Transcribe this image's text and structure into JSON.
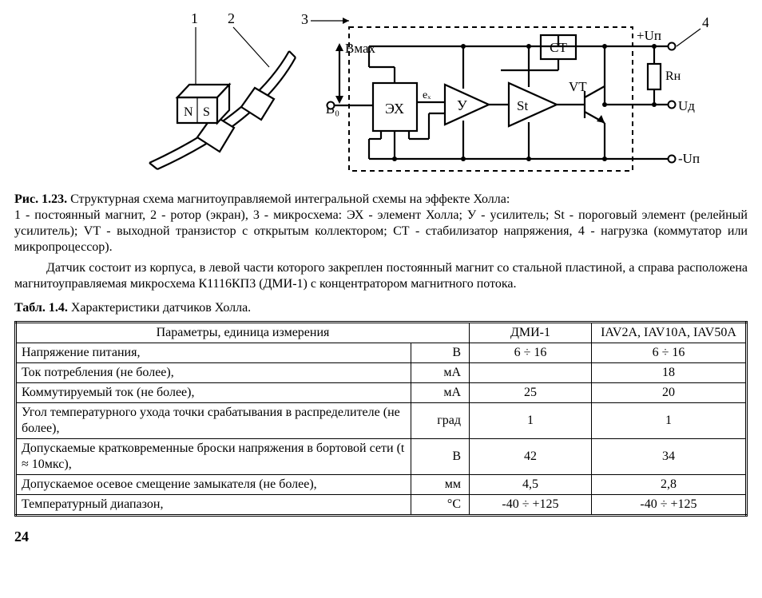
{
  "figure": {
    "labels": {
      "l1": "1",
      "l2": "2",
      "l3": "3",
      "l4": "4",
      "N": "N",
      "S": "S",
      "Bmax": "Bмах",
      "B0": "B₀",
      "EX": "ЭХ",
      "U": "У",
      "St": "St",
      "CT": "СТ",
      "ex": "eₓ",
      "VT": "VT",
      "Rn": "Rн",
      "plusU": "+Uп",
      "Ud": "Uд",
      "minusU": "-Uп"
    },
    "colors": {
      "stroke": "#000000",
      "fill_none": "none",
      "bg": "#ffffff"
    },
    "line_widths": {
      "thin": 1.2,
      "thick": 2.2
    },
    "dash": "6,5"
  },
  "caption": {
    "lead": "Рис. 1.23.",
    "title": " Структурная схема магнитоуправляемой интегральной схемы на эффекте Холла:",
    "body": "1 - постоянный магнит, 2 - ротор (экран), 3 - микросхема: ЭХ - элемент Холла; У - усилитель; St - пороговый элемент (релейный усилитель); VT - выходной транзистор с открытым коллектором; СТ - стабилизатор напряжения, 4 - нагрузка (коммутатор или микропроцессор)."
  },
  "paragraph": "Датчик состоит из корпуса, в левой части которого закреплен постоянный магнит со стальной пластиной, а справа расположена магнитоуправляемая микросхема К1116КП3 (ДМИ-1) с концентратором магнитного потока.",
  "table_title": {
    "lead": "Табл. 1.4.",
    "rest": " Характеристики датчиков Холла."
  },
  "table": {
    "columns": [
      "Параметры, единица измерения",
      "ДМИ-1",
      "IAV2A, IAV10A, IAV50A"
    ],
    "rows": [
      {
        "p": "Напряжение питания,",
        "u": "В",
        "v1": "6 ÷ 16",
        "v2": "6 ÷ 16"
      },
      {
        "p": "Ток потребления (не более),",
        "u": "мА",
        "v1": "",
        "v2": "18"
      },
      {
        "p": "Коммутируемый ток (не более),",
        "u": "мА",
        "v1": "25",
        "v2": "20"
      },
      {
        "p": "Угол температурного ухода точки срабатывания в распределителе (не более),",
        "u": "град",
        "v1": "1",
        "v2": "1"
      },
      {
        "p": "Допускаемые кратковременные броски напряжения в бортовой сети (t ≈ 10мкс),",
        "u": "В",
        "v1": "42",
        "v2": "34"
      },
      {
        "p": "Допускаемое осевое смещение замыкателя (не более),",
        "u": "мм",
        "v1": "4,5",
        "v2": "2,8"
      },
      {
        "p": "Температурный диапазон,",
        "u": "°C",
        "v1": "-40 ÷ +125",
        "v2": "-40 ÷ +125"
      }
    ]
  },
  "page_number": "24"
}
